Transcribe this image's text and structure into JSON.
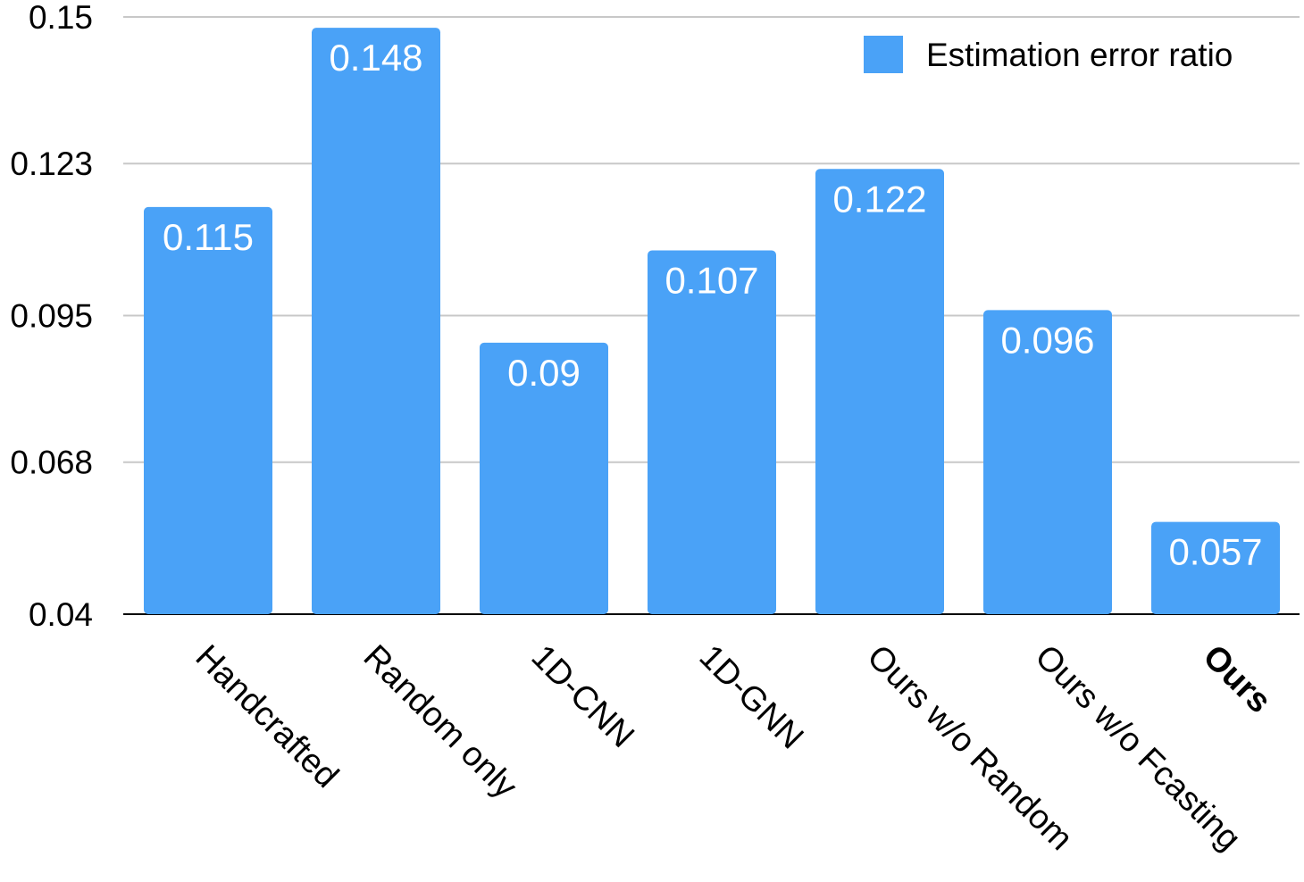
{
  "chart_data": {
    "type": "bar",
    "categories": [
      "Handcrafted",
      "Random only",
      "1D-CNN",
      "1D-GNN",
      "Ours w/o Random",
      "Ours w/o Fcasting",
      "Ours"
    ],
    "bold_categories": [
      "Ours"
    ],
    "series": [
      {
        "name": "Estimation error ratio",
        "values": [
          0.115,
          0.148,
          0.09,
          0.107,
          0.122,
          0.096,
          0.057
        ],
        "data_labels": [
          "0.115",
          "0.148",
          "0.09",
          "0.107",
          "0.122",
          "0.096",
          "0.057"
        ],
        "color": "#4aa2f7"
      }
    ],
    "yticks": [
      0.04,
      0.068,
      0.095,
      0.123,
      0.15
    ],
    "ytick_labels": [
      "0.04",
      "0.068",
      "0.095",
      "0.123",
      "0.15"
    ],
    "ylim": [
      0.04,
      0.15
    ],
    "grid": true,
    "legend_position": "top-right",
    "xlabel_rotation": 45,
    "title": "",
    "xlabel": "",
    "ylabel": ""
  }
}
